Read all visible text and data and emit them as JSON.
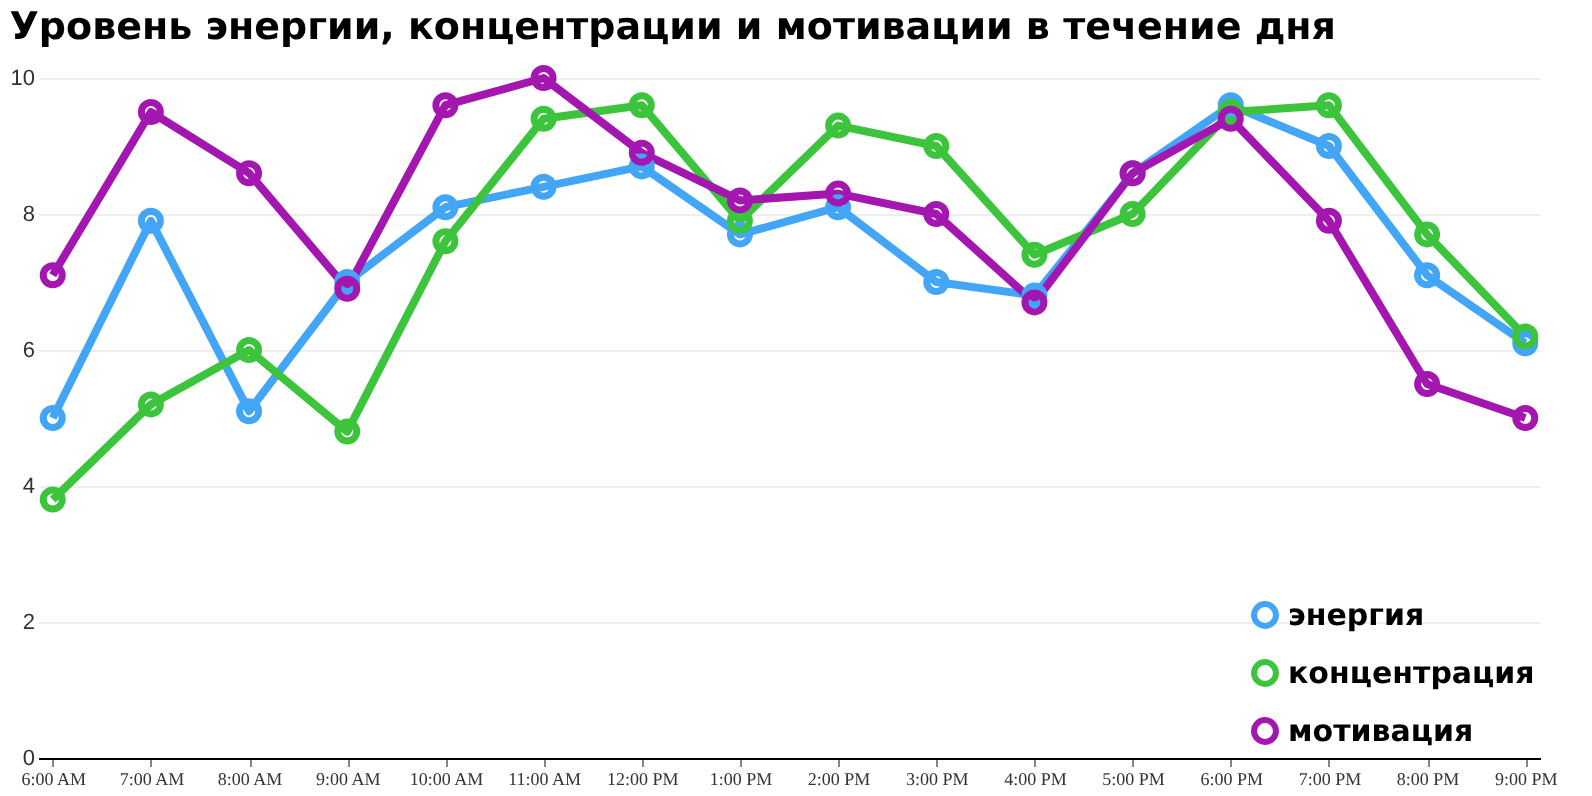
{
  "chart_data": {
    "type": "line",
    "title": "Уровень энергии, концентрации и мотивации в течение дня",
    "categories": [
      "6:00 AM",
      "7:00 AM",
      "8:00 AM",
      "9:00 AM",
      "10:00 AM",
      "11:00 AM",
      "12:00 PM",
      "1:00 PM",
      "2:00 PM",
      "3:00 PM",
      "4:00 PM",
      "5:00 PM",
      "6:00 PM",
      "7:00 PM",
      "8:00 PM",
      "9:00 PM"
    ],
    "series": [
      {
        "name": "энергия",
        "color": "#42a5f5",
        "values": [
          5.0,
          7.9,
          5.1,
          7.0,
          8.1,
          8.4,
          8.7,
          7.7,
          8.1,
          7.0,
          6.8,
          8.6,
          9.6,
          9.0,
          7.1,
          6.1
        ]
      },
      {
        "name": "концентрация",
        "color": "#3cc43c",
        "values": [
          3.8,
          5.2,
          6.0,
          4.8,
          7.6,
          9.4,
          9.6,
          7.9,
          9.3,
          9.0,
          7.4,
          8.0,
          9.5,
          9.6,
          7.7,
          6.2
        ]
      },
      {
        "name": "мотивация",
        "color": "#a316b0",
        "values": [
          7.1,
          9.5,
          8.6,
          6.9,
          9.6,
          10.0,
          8.9,
          8.2,
          8.3,
          8.0,
          6.7,
          8.6,
          9.4,
          7.9,
          5.5,
          5.0
        ]
      }
    ],
    "ylim": [
      0,
      10
    ],
    "yticks": [
      0,
      2,
      4,
      6,
      8,
      10
    ],
    "grid": "y",
    "legend": "bottom right",
    "marker": "circle",
    "line_style": "solid"
  }
}
